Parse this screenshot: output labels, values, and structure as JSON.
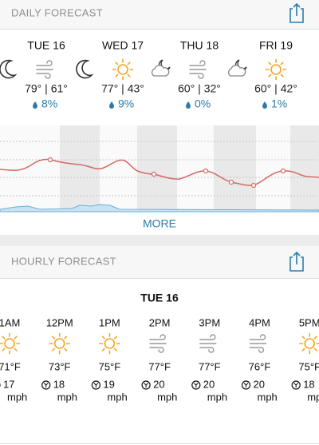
{
  "daily": {
    "title": "DAILY FORECAST",
    "days": [
      {
        "name": "TUE 16",
        "night_icon": "moon",
        "day_icon": "wind",
        "temps": "79° | 61°",
        "precip": "8%"
      },
      {
        "name": "WED 17",
        "night_icon": "moon",
        "day_icon": "sun",
        "temps": "77° | 43°",
        "precip": "9%"
      },
      {
        "name": "THU 18",
        "night_icon": "moon-cloud",
        "day_icon": "wind",
        "temps": "60° | 32°",
        "precip": "0%"
      },
      {
        "name": "FRI 19",
        "night_icon": "moon-cloud",
        "day_icon": "sun",
        "temps": "60° | 42°",
        "precip": "1%"
      }
    ],
    "more": "MORE"
  },
  "hourly": {
    "title": "HOURLY FORECAST",
    "date": "TUE 16",
    "wind_unit": "mph",
    "hours": [
      {
        "time": "1AM",
        "icon": "sun",
        "temp": "71°F",
        "wind": "17"
      },
      {
        "time": "12PM",
        "icon": "sun",
        "temp": "73°F",
        "wind": "18"
      },
      {
        "time": "1PM",
        "icon": "sun",
        "temp": "75°F",
        "wind": "19"
      },
      {
        "time": "2PM",
        "icon": "wind",
        "temp": "77°F",
        "wind": "20"
      },
      {
        "time": "3PM",
        "icon": "wind",
        "temp": "77°F",
        "wind": "20"
      },
      {
        "time": "4PM",
        "icon": "wind",
        "temp": "76°F",
        "wind": "20"
      },
      {
        "time": "5PM",
        "icon": "sun",
        "temp": "75°F",
        "wind": "18"
      }
    ]
  }
}
